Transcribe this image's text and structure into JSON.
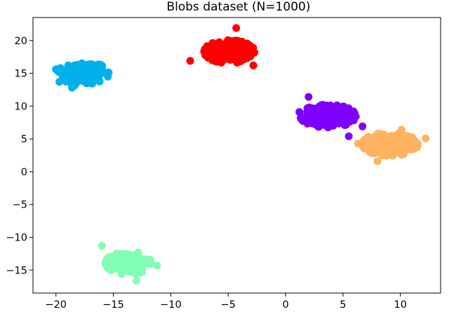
{
  "chart_data": {
    "type": "scatter",
    "title": "Blobs dataset (N=1000)",
    "xlabel": "",
    "ylabel": "",
    "xlim": [
      -22.0,
      13.5
    ],
    "ylim": [
      -18.5,
      23.5
    ],
    "xticks": [
      -20,
      -15,
      -10,
      -5,
      0,
      5,
      10
    ],
    "yticks": [
      -15,
      -10,
      -5,
      0,
      5,
      10,
      15,
      20
    ],
    "xtick_labels": [
      "−20",
      "−15",
      "−10",
      "−5",
      "0",
      "5",
      "10"
    ],
    "ytick_labels": [
      "−15",
      "−10",
      "−5",
      "0",
      "5",
      "10",
      "15",
      "20"
    ],
    "grid": false,
    "legend": "none",
    "total_points": 1000,
    "clusters": [
      {
        "color": "#00b0eb",
        "center": [
          -17.6,
          15.0
        ],
        "spread": [
          1.0,
          0.9
        ],
        "count": 200,
        "outliers": [
          [
            -20.0,
            15.6
          ],
          [
            -19.7,
            13.7
          ],
          [
            -18.6,
            12.8
          ],
          [
            -15.8,
            15.1
          ]
        ]
      },
      {
        "color": "#ff0000",
        "center": [
          -4.9,
          18.3
        ],
        "spread": [
          1.0,
          0.8
        ],
        "count": 200,
        "outliers": [
          [
            -8.3,
            16.9
          ],
          [
            -4.3,
            21.9
          ],
          [
            -2.8,
            16.2
          ]
        ]
      },
      {
        "color": "#8000ff",
        "center": [
          3.7,
          8.5
        ],
        "spread": [
          1.1,
          0.8
        ],
        "count": 200,
        "outliers": [
          [
            2.0,
            11.4
          ],
          [
            5.5,
            5.4
          ],
          [
            6.7,
            6.9
          ],
          [
            1.2,
            9.1
          ]
        ]
      },
      {
        "color": "#ffb360",
        "center": [
          9.1,
          4.2
        ],
        "spread": [
          1.1,
          0.8
        ],
        "count": 200,
        "outliers": [
          [
            12.2,
            5.1
          ],
          [
            6.3,
            4.3
          ],
          [
            8.0,
            1.6
          ],
          [
            10.1,
            6.4
          ]
        ]
      },
      {
        "color": "#80ffb4",
        "center": [
          -13.7,
          -13.9
        ],
        "spread": [
          0.9,
          0.8
        ],
        "count": 200,
        "outliers": [
          [
            -16.0,
            -11.3
          ],
          [
            -11.2,
            -14.3
          ],
          [
            -13.0,
            -16.6
          ]
        ]
      }
    ]
  }
}
